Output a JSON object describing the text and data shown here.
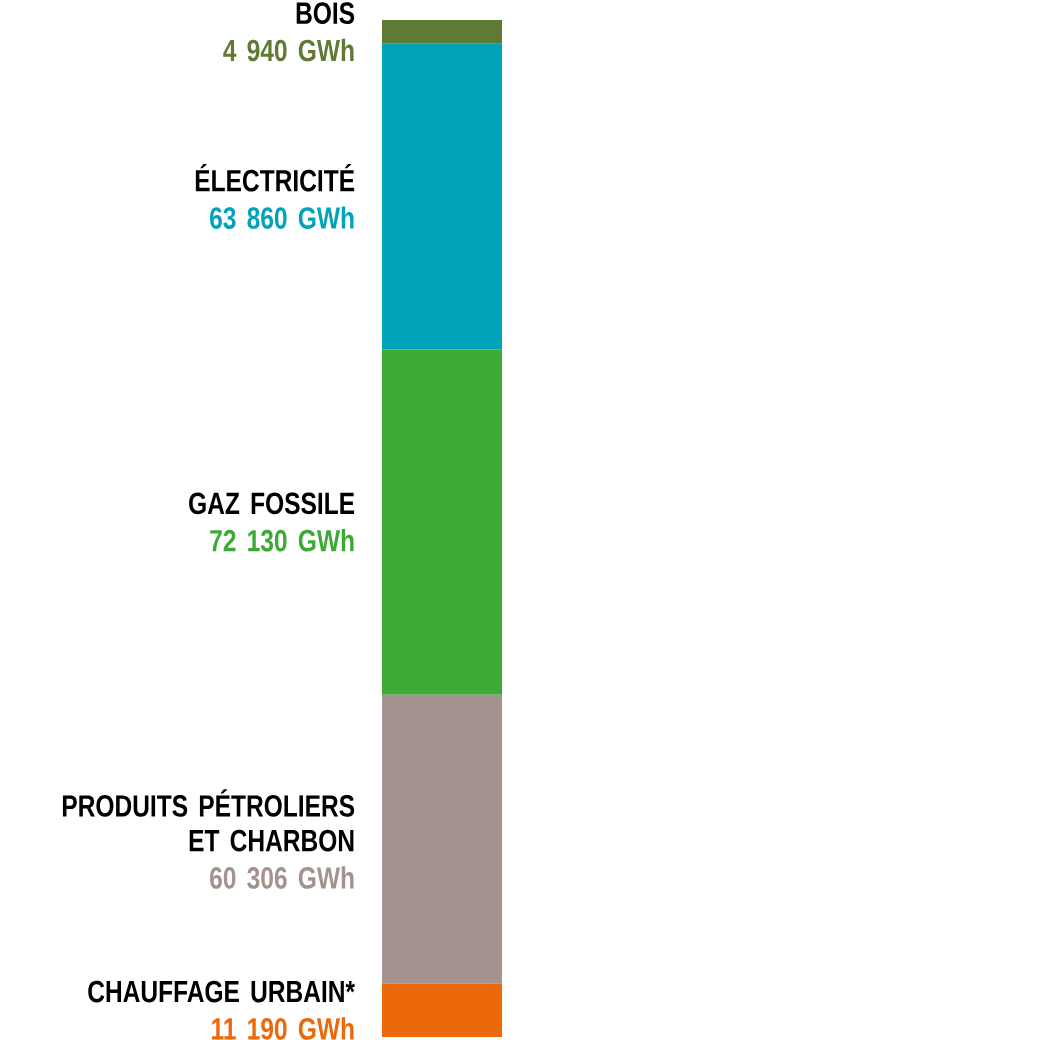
{
  "chart_data": {
    "type": "other",
    "categories": [
      "BOIS",
      "ÉLECTRICITÉ",
      "GAZ FOSSILE",
      "PRODUITS PÉTROLIERS ET CHARBON",
      "CHAUFFAGE URBAIN*"
    ],
    "values": [
      4940,
      63860,
      72130,
      60306,
      11190
    ],
    "value_labels": [
      "4 940 GWh",
      "63 860 GWh",
      "72 130 GWh",
      "60 306 GWh",
      "11 190 GWh"
    ],
    "colors": [
      "#5f7a34",
      "#00a3b9",
      "#3daa35",
      "#a3928e",
      "#eb690b"
    ]
  }
}
